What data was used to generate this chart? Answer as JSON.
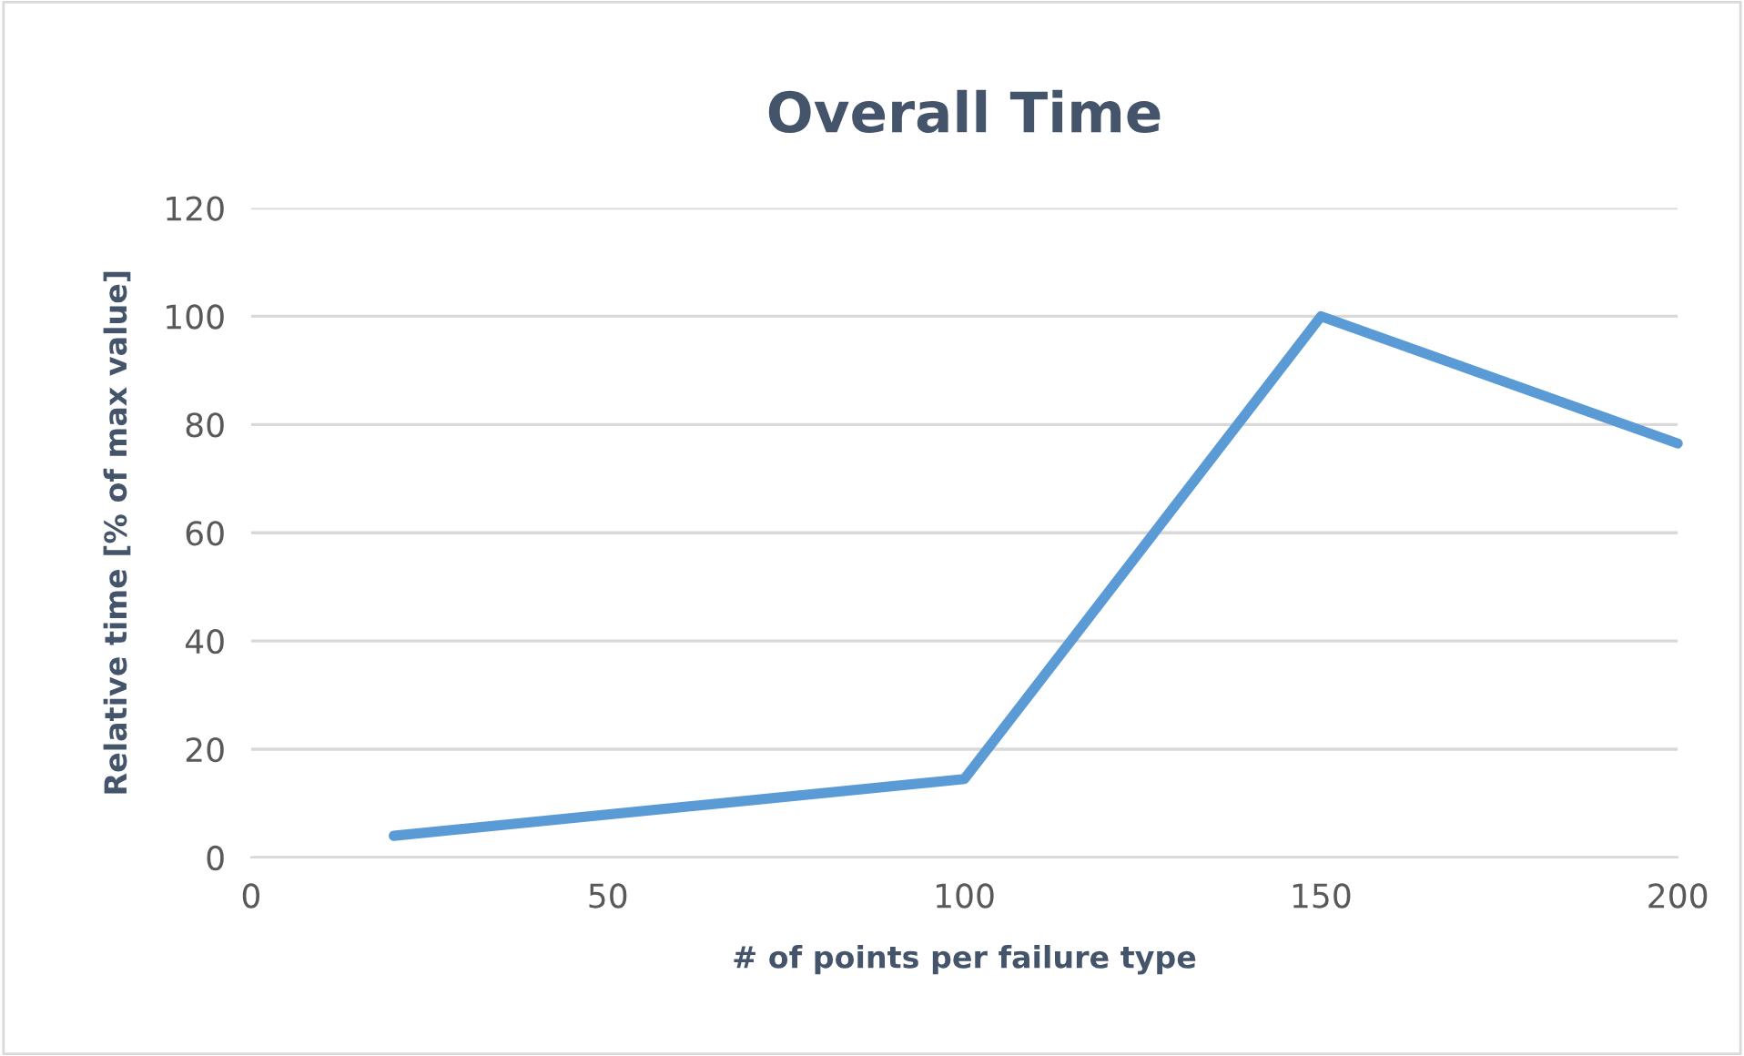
{
  "chart_data": {
    "type": "line",
    "title": "Overall Time",
    "xlabel": "# of points per failure type",
    "ylabel": "Relative time [% of max value]",
    "x": [
      20,
      100,
      150,
      200
    ],
    "series": [
      {
        "color": "#5b9bd5",
        "values": [
          4,
          14.5,
          100,
          76.5
        ]
      }
    ],
    "xlim": [
      0,
      200
    ],
    "xticks": [
      0,
      50,
      100,
      150,
      200
    ],
    "ylim": [
      0,
      120
    ],
    "yticks": [
      0,
      20,
      40,
      60,
      80,
      100,
      120
    ],
    "grid": "y",
    "marker": "none",
    "line_style": "solid",
    "legend": false
  }
}
